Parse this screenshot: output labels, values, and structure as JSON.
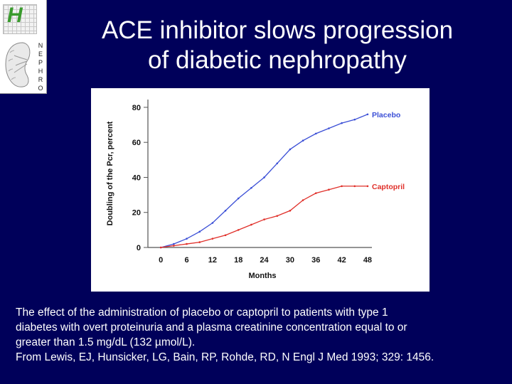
{
  "logo": {
    "letter": "H",
    "vertical_text": [
      "N",
      "E",
      "P",
      "H",
      "R",
      "O"
    ],
    "colors": {
      "letter": "#3a9b2e"
    }
  },
  "slide": {
    "title_line1": "ACE inhibitor slows progression",
    "title_line2": "of diabetic nephropathy",
    "caption_line1": "The effect of the administration of placebo or captopril to patients with type 1",
    "caption_line2": "diabetes with overt proteinuria and a plasma creatinine concentration equal to or",
    "caption_line3": "greater than 1.5 mg/dL (132 µmol/L).",
    "caption_line4": "From Lewis, EJ, Hunsicker, LG, Bain, RP, Rohde, RD, N Engl J Med 1993; 329: 1456.",
    "colors": {
      "background": "#00005a",
      "text": "#ffffff"
    }
  },
  "chart_data": {
    "type": "line",
    "title": "",
    "xlabel": "Months",
    "ylabel": "Doubling of the Pcr, percent",
    "x": [
      0,
      3,
      6,
      9,
      12,
      15,
      18,
      21,
      24,
      27,
      30,
      33,
      36,
      39,
      42,
      45,
      48
    ],
    "xticks": [
      0,
      6,
      12,
      18,
      24,
      30,
      36,
      42,
      48
    ],
    "yticks": [
      0,
      20,
      40,
      60,
      80
    ],
    "xlim": [
      -3,
      49
    ],
    "ylim": [
      0,
      82
    ],
    "grid": false,
    "series": [
      {
        "name": "Placebo",
        "color": "#3b4fd6",
        "values": [
          0,
          2,
          5,
          9,
          14,
          21,
          28,
          34,
          40,
          48,
          56,
          61,
          65,
          68,
          71,
          73,
          76
        ]
      },
      {
        "name": "Captopril",
        "color": "#e0302a",
        "values": [
          0,
          1,
          2,
          3,
          5,
          7,
          10,
          13,
          16,
          18,
          21,
          27,
          31,
          33,
          35,
          35,
          35
        ]
      }
    ]
  }
}
